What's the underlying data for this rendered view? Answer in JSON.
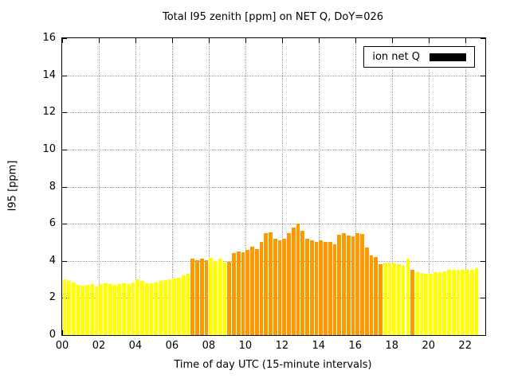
{
  "chart_data": {
    "type": "bar",
    "title": "Total I95 zenith [ppm] on NET Q, DoY=026",
    "xlabel": "Time of day UTC (15-minute intervals)",
    "ylabel": "I95 [ppm]",
    "legend_label": "ion net Q",
    "ylim": [
      0,
      16
    ],
    "ytick_step": 2,
    "xlim_hours": [
      0,
      23.1
    ],
    "xtick_hours": [
      0,
      2,
      4,
      6,
      8,
      10,
      12,
      14,
      16,
      18,
      20,
      22
    ],
    "xtick_labels": [
      "00",
      "02",
      "04",
      "06",
      "08",
      "10",
      "12",
      "14",
      "16",
      "18",
      "20",
      "22"
    ],
    "start_hour": 0,
    "interval_minutes": 15,
    "values": [
      3.0,
      2.9,
      2.85,
      2.7,
      2.65,
      2.7,
      2.75,
      2.6,
      2.75,
      2.8,
      2.75,
      2.7,
      2.75,
      2.8,
      2.75,
      2.85,
      3.0,
      2.9,
      2.8,
      2.8,
      2.85,
      2.9,
      2.95,
      3.0,
      3.05,
      3.1,
      3.2,
      3.3,
      4.1,
      4.05,
      4.1,
      4.05,
      4.15,
      4.0,
      4.1,
      3.9,
      3.95,
      4.4,
      4.5,
      4.45,
      4.6,
      4.75,
      4.65,
      5.0,
      5.5,
      5.55,
      5.2,
      5.1,
      5.2,
      5.5,
      5.8,
      6.0,
      5.6,
      5.2,
      5.1,
      5.0,
      5.1,
      5.0,
      5.0,
      4.9,
      5.4,
      5.5,
      5.35,
      5.3,
      5.5,
      5.45,
      4.7,
      4.3,
      4.2,
      3.8,
      3.85,
      3.9,
      3.85,
      3.8,
      3.75,
      4.1,
      3.5,
      3.4,
      3.35,
      3.3,
      3.3,
      3.4,
      3.4,
      3.45,
      3.5,
      3.5,
      3.5,
      3.5,
      3.5,
      3.5,
      3.6
    ],
    "colors": "yyyyyyyyyyyyyyyyyyyyyyyyyyyyooooyyyyooooooooooooooooooooooooooooooooooyyyyyyoyyyyyyyyyyyyyyy",
    "color_map": {
      "y": "#ffff00",
      "o": "#ff9900"
    },
    "grid": true,
    "legend_position": "top-right"
  }
}
